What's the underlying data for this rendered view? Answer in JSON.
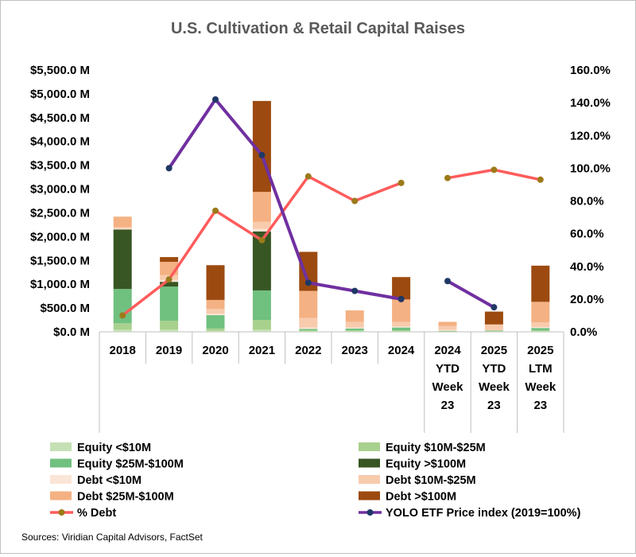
{
  "chart_data": {
    "type": "bar",
    "title": "U.S. Cultivation & Retail Capital Raises",
    "source": "Sources: Viridian Capital Advisors, FactSet",
    "stacked": true,
    "categories": [
      [
        "2018"
      ],
      [
        "2019"
      ],
      [
        "2020"
      ],
      [
        "2021"
      ],
      [
        "2022"
      ],
      [
        "2023"
      ],
      [
        "2024"
      ],
      [
        "2024",
        "YTD",
        "Week",
        "23"
      ],
      [
        "2025",
        "YTD",
        "Week",
        "23"
      ],
      [
        "2025",
        "LTM",
        "Week",
        "23"
      ]
    ],
    "y_left": {
      "ylim": [
        0,
        5500
      ],
      "ticks": [
        0,
        500,
        1000,
        1500,
        2000,
        2500,
        3000,
        3500,
        4000,
        4500,
        5000,
        5500
      ],
      "tick_labels": [
        "$0.0 M",
        "$500.0 M",
        "$1,000.0 M",
        "$1,500.0 M",
        "$2,000.0 M",
        "$2,500.0 M",
        "$3,000.0 M",
        "$3,500.0 M",
        "$4,000.0 M",
        "$4,500.0 M",
        "$5,000.0 M",
        "$5,500.0 M"
      ]
    },
    "y_right": {
      "ylim": [
        0,
        160
      ],
      "ticks": [
        0,
        20,
        40,
        60,
        80,
        100,
        120,
        140,
        160
      ],
      "tick_labels": [
        "0.0%",
        "20.0%",
        "40.0%",
        "60.0%",
        "80.0%",
        "100.0%",
        "120.0%",
        "140.0%",
        "160.0%"
      ]
    },
    "series": [
      {
        "name": "Equity <$10M",
        "kind": "bar",
        "color": "#c5e0b4",
        "values": [
          50,
          50,
          20,
          50,
          10,
          10,
          10,
          0,
          5,
          10
        ]
      },
      {
        "name": "Equity $10M-$25M",
        "kind": "bar",
        "color": "#a9d18e",
        "values": [
          130,
          180,
          50,
          200,
          20,
          20,
          20,
          10,
          10,
          20
        ]
      },
      {
        "name": "Equity $25M-$100M",
        "kind": "bar",
        "color": "#70c080",
        "values": [
          720,
          720,
          280,
          620,
          30,
          40,
          60,
          10,
          10,
          50
        ]
      },
      {
        "name": "Equity >$100M",
        "kind": "bar",
        "color": "#375623",
        "values": [
          1250,
          100,
          0,
          1240,
          0,
          0,
          0,
          0,
          0,
          0
        ]
      },
      {
        "name": "Debt <$10M",
        "kind": "bar",
        "color": "#fbe5d6",
        "values": [
          20,
          40,
          30,
          50,
          30,
          20,
          20,
          20,
          10,
          20
        ]
      },
      {
        "name": "Debt $10M-$25M",
        "kind": "bar",
        "color": "#f8cbad",
        "values": [
          30,
          100,
          100,
          150,
          200,
          120,
          100,
          80,
          120,
          100
        ]
      },
      {
        "name": "Debt $25M-$100M",
        "kind": "bar",
        "color": "#f4b183",
        "values": [
          220,
          280,
          190,
          630,
          570,
          240,
          470,
          90,
          0,
          430
        ]
      },
      {
        "name": "Debt >$100M",
        "kind": "bar",
        "color": "#9c4a10",
        "values": [
          0,
          100,
          730,
          1910,
          820,
          0,
          470,
          0,
          270,
          760
        ]
      },
      {
        "name": "% Debt",
        "kind": "line",
        "axis": "right",
        "color": "#ff5b5b",
        "marker_color": "#9c7a1a",
        "values": [
          10,
          32,
          74,
          56,
          95,
          80,
          91,
          94,
          99,
          93
        ]
      },
      {
        "name": "YOLO ETF Price index (2019=100%)",
        "kind": "line",
        "axis": "right",
        "color": "#7030a0",
        "marker_color": "#1f3864",
        "values": [
          null,
          100,
          142,
          108,
          30,
          25,
          20,
          31,
          15,
          null
        ]
      }
    ],
    "line_segments": {
      "YOLO ETF Price index (2019=100%)": [
        [
          1,
          6
        ],
        [
          7,
          8
        ]
      ],
      "% Debt": [
        [
          0,
          6
        ],
        [
          7,
          9
        ]
      ]
    },
    "legend_placement": "bottom",
    "grid": false
  }
}
